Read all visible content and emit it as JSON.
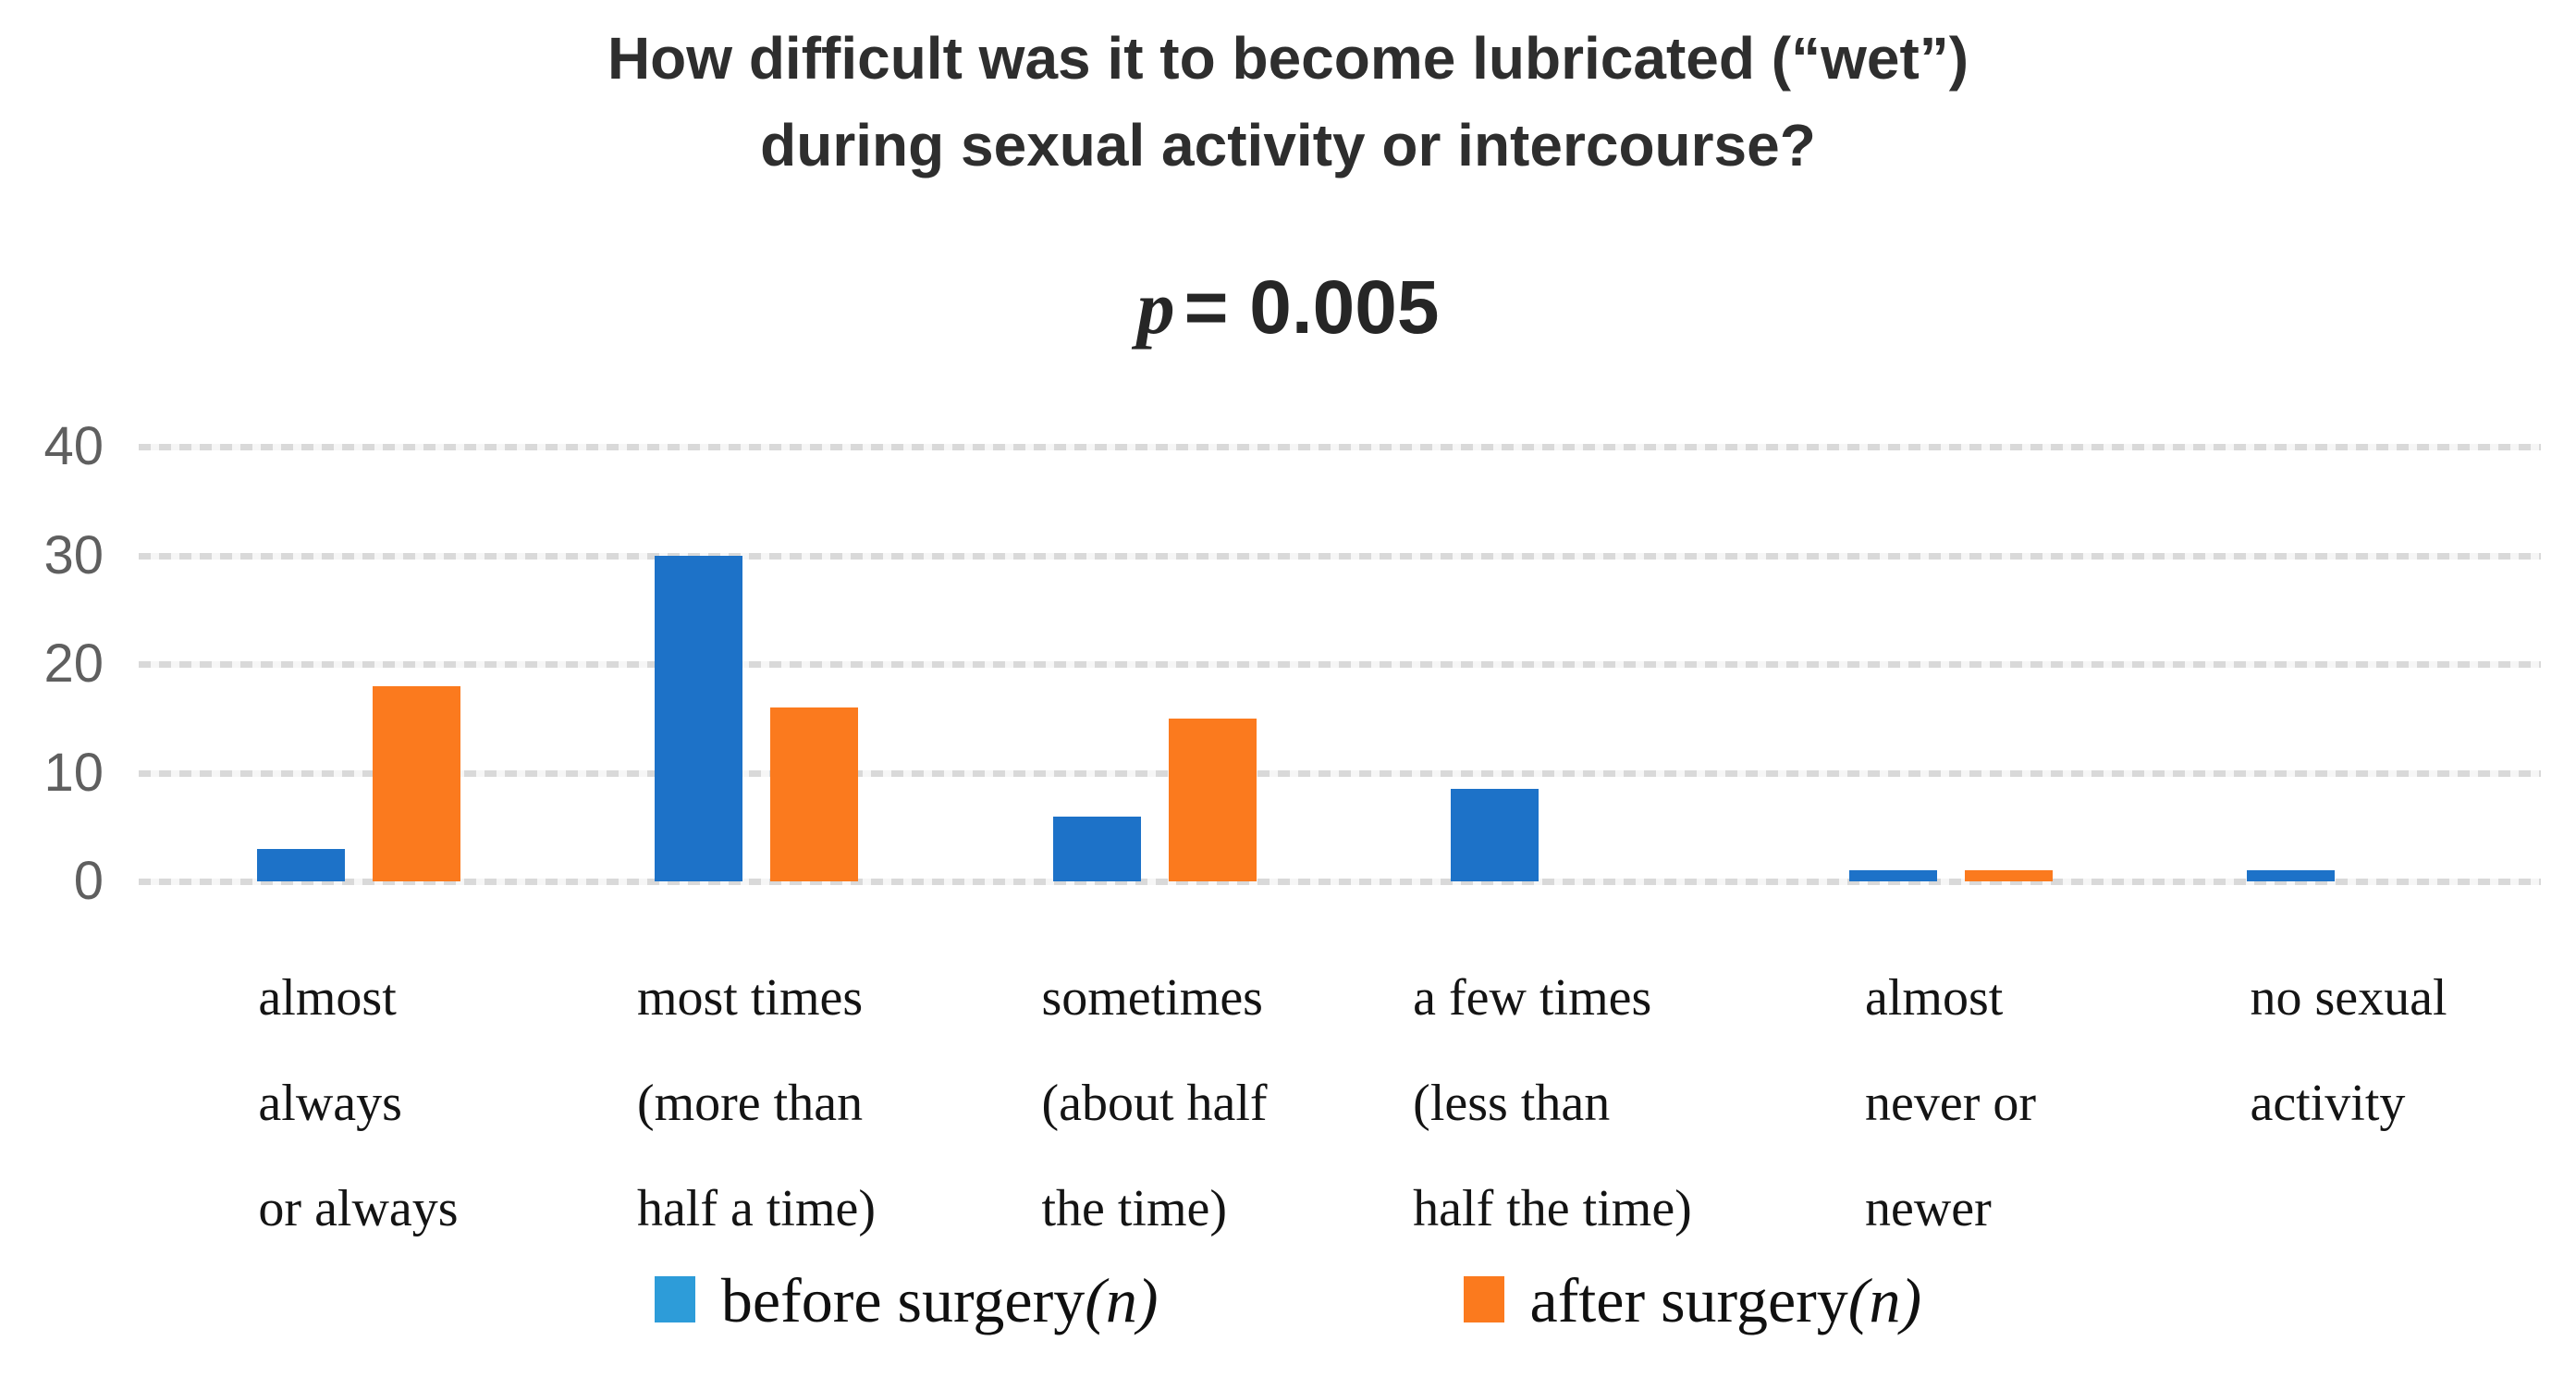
{
  "chart_data": {
    "type": "bar",
    "title_lines": [
      "How difficult was it to become lubricated (“wet”)",
      "during sexual activity or intercourse?"
    ],
    "subtitle": {
      "p": "p",
      "value": "= 0.005"
    },
    "categories": [
      "almost always or always",
      "most times (more than half a time)",
      "sometimes (about half the time)",
      "a few times (less than half the time)",
      "almost never or newer",
      "no sexual activity"
    ],
    "category_label_lines": [
      [
        "almost",
        "always",
        "or always"
      ],
      [
        "most times",
        "(more than",
        "half a time)"
      ],
      [
        "sometimes",
        "(about half",
        "the time)"
      ],
      [
        "a few times",
        "(less than",
        "half the time)"
      ],
      [
        "almost",
        "never or",
        "newer"
      ],
      [
        "no sexual",
        "activity"
      ]
    ],
    "series": [
      {
        "key": "before",
        "name": "before surgery",
        "legend_suffix": "(n)",
        "color": "#1d72c8",
        "legend_color": "#2d9cd9",
        "values": [
          3,
          30,
          6,
          8.5,
          1,
          1
        ]
      },
      {
        "key": "after",
        "name": "after surgery",
        "legend_suffix": "(n)",
        "color": "#fb7a1e",
        "legend_color": "#fb7a1e",
        "values": [
          18,
          16,
          15,
          0,
          1,
          0
        ]
      }
    ],
    "y_ticks": [
      0,
      10,
      20,
      30,
      40
    ],
    "ylim": [
      0,
      40
    ],
    "grid": "horizontal-dotted",
    "grid_color": "#d9d9d9",
    "legend_position": "bottom"
  }
}
